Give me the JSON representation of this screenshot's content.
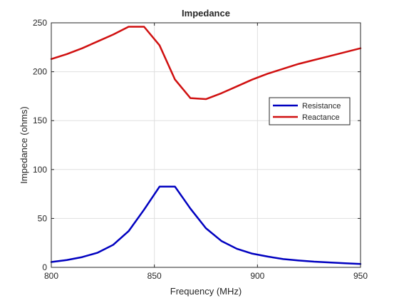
{
  "chart_data": {
    "type": "line",
    "title": "Impedance",
    "xlabel": "Frequency (MHz)",
    "ylabel": "Impedance (ohms)",
    "xlim": [
      800,
      950
    ],
    "ylim": [
      0,
      250
    ],
    "xticks": [
      800,
      850,
      900,
      950
    ],
    "yticks": [
      0,
      50,
      100,
      150,
      200,
      250
    ],
    "grid": true,
    "legend_position": "right",
    "x": [
      800,
      807.5,
      815,
      822.5,
      830,
      837.5,
      845,
      852.5,
      860,
      867.5,
      875,
      882.5,
      890,
      897.5,
      905,
      912.5,
      920,
      927.5,
      935,
      942.5,
      950
    ],
    "series": [
      {
        "name": "Resistance",
        "color": "#0000c0",
        "values": [
          5.5,
          7.5,
          10.5,
          15,
          23,
          37,
          59,
          82.5,
          82.5,
          60,
          40,
          27,
          19,
          14,
          11,
          8.5,
          7,
          5.8,
          5,
          4.2,
          3.5
        ]
      },
      {
        "name": "Reactance",
        "color": "#d01010",
        "values": [
          213,
          218,
          224,
          231,
          238,
          246,
          246,
          227,
          192,
          173,
          172,
          178,
          185,
          192,
          198,
          203,
          208,
          212,
          216,
          220,
          224
        ]
      }
    ]
  }
}
